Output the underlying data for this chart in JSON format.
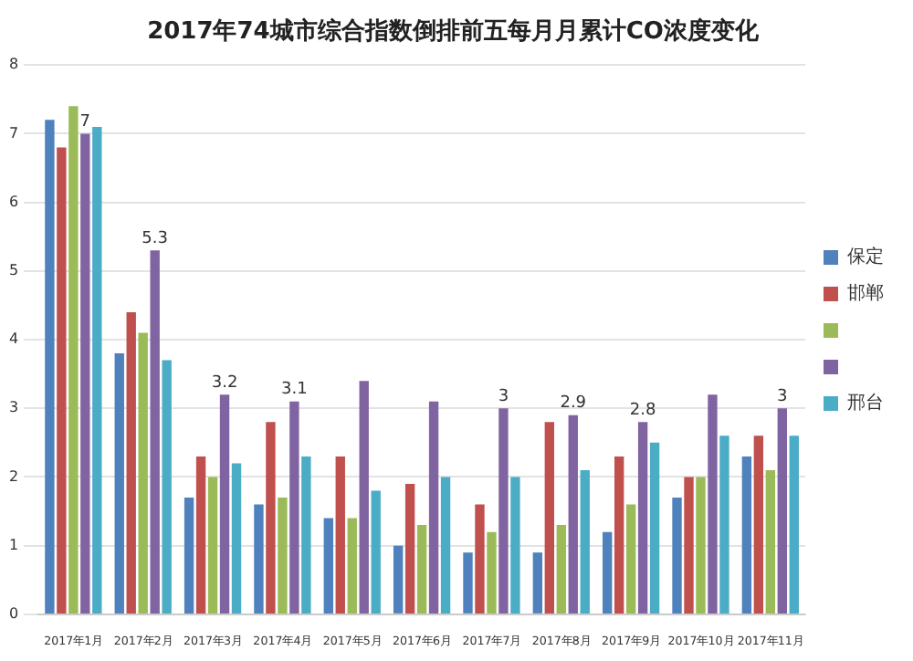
{
  "chart_data": {
    "type": "bar",
    "title": "2017年74城市综合指数倒排前五每月月累计CO浓度变化",
    "categories": [
      "2017年1月",
      "2017年2月",
      "2017年3月",
      "2017年4月",
      "2017年5月",
      "2017年6月",
      "2017年7月",
      "2017年8月",
      "2017年9月",
      "2017年10月",
      "2017年11月"
    ],
    "series": [
      {
        "name": "保定",
        "color": "#4f81bd",
        "values": [
          7.2,
          3.8,
          1.7,
          1.6,
          1.4,
          1.0,
          0.9,
          0.9,
          1.2,
          1.7,
          2.3
        ]
      },
      {
        "name": "邯郸",
        "color": "#c0504d",
        "values": [
          6.8,
          4.4,
          2.3,
          2.8,
          2.3,
          1.9,
          1.6,
          2.8,
          2.3,
          2.0,
          2.6
        ]
      },
      {
        "color": "#9bbb59",
        "values": [
          7.4,
          4.1,
          2.0,
          1.7,
          1.4,
          1.3,
          1.2,
          1.3,
          1.6,
          2.0,
          2.1
        ]
      },
      {
        "color": "#8064a2",
        "values": [
          7.0,
          5.3,
          3.2,
          3.1,
          3.4,
          3.1,
          3.0,
          2.9,
          2.8,
          3.2,
          3.0
        ],
        "value_labels": [
          "7",
          "5.3",
          "3.2",
          "3.1",
          null,
          null,
          "3",
          "2.9",
          "2.8",
          null,
          "3"
        ]
      },
      {
        "name": "邢台",
        "color": "#4bacc6",
        "values": [
          7.1,
          3.7,
          2.2,
          2.3,
          1.8,
          2.0,
          2.0,
          2.1,
          2.5,
          2.6,
          2.6
        ]
      }
    ],
    "ylim": [
      0,
      8
    ],
    "yticks": [
      0,
      1,
      2,
      3,
      4,
      5,
      6,
      7,
      8
    ],
    "grid": "y",
    "legend": "right"
  }
}
